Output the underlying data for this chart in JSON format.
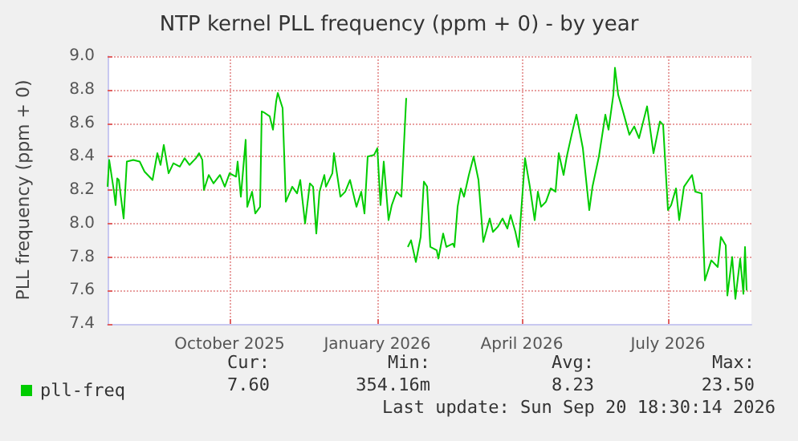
{
  "chart_data": {
    "type": "line",
    "title": "NTP kernel PLL frequency (ppm + 0) - by year",
    "ylabel": "PLL frequency (ppm + 0)",
    "xlim": [
      "2025-07-17",
      "2026-08-22"
    ],
    "xticks": [
      {
        "value": "2025-10-01",
        "label": "October 2025"
      },
      {
        "value": "2026-01-01",
        "label": "January 2026"
      },
      {
        "value": "2026-04-01",
        "label": "April 2026"
      },
      {
        "value": "2026-07-01",
        "label": "July 2026"
      }
    ],
    "ylim": [
      7.4,
      9.0
    ],
    "yticks": [
      {
        "value": 7.4,
        "label": "7.4"
      },
      {
        "value": 7.6,
        "label": "7.6"
      },
      {
        "value": 7.8,
        "label": "7.8"
      },
      {
        "value": 8.0,
        "label": "8.0"
      },
      {
        "value": 8.2,
        "label": "8.2"
      },
      {
        "value": 8.4,
        "label": "8.4"
      },
      {
        "value": 8.6,
        "label": "8.6"
      },
      {
        "value": 8.8,
        "label": "8.8"
      },
      {
        "value": 9.0,
        "label": "9.0"
      }
    ],
    "grid": true,
    "legend": "bottom left",
    "marker": "none",
    "line_style": "solid",
    "annotations": [
      "Cur:",
      "Min:",
      "Avg:",
      "Max:",
      "7.60",
      "354.16m",
      "8.23",
      "23.50",
      "Last update: Sun Sep 20 18:30:14 2026"
    ],
    "x": [
      "2025-07-17",
      "2025-07-18",
      "2025-07-21",
      "2025-07-22",
      "2025-07-23",
      "2025-07-24",
      "2025-07-27",
      "2025-07-29",
      "2025-08-02",
      "2025-08-06",
      "2025-08-09",
      "2025-08-14",
      "2025-08-17",
      "2025-08-19",
      "2025-08-21",
      "2025-08-24",
      "2025-08-27",
      "2025-08-31",
      "2025-09-03",
      "2025-09-06",
      "2025-09-10",
      "2025-09-12",
      "2025-09-14",
      "2025-09-15",
      "2025-09-18",
      "2025-09-21",
      "2025-09-25",
      "2025-09-28",
      "2025-10-01",
      "2025-10-05",
      "2025-10-06",
      "2025-10-08",
      "2025-10-11",
      "2025-10-12",
      "2025-10-15",
      "2025-10-17",
      "2025-10-20",
      "2025-10-21",
      "2025-10-23",
      "2025-10-26",
      "2025-10-28",
      "2025-10-30",
      "2025-10-31",
      "2025-11-03",
      "2025-11-05",
      "2025-11-09",
      "2025-11-12",
      "2025-11-14",
      "2025-11-17",
      "2025-11-20",
      "2025-11-22",
      "2025-11-24",
      "2025-11-26",
      "2025-11-29",
      "2025-11-30",
      "2025-12-04",
      "2025-12-05",
      "2025-12-09",
      "2025-12-12",
      "2025-12-15",
      "2025-12-19",
      "2025-12-22",
      "2025-12-24",
      "2025-12-26",
      "2025-12-30",
      "2026-01-01",
      "2026-01-03",
      "2026-01-05",
      "2026-01-08",
      "2026-01-10",
      "2026-01-13",
      "2026-01-16",
      "2026-01-19",
      "2026-01-19T12:00",
      "2026-01-20",
      "2026-01-22",
      "2026-01-25",
      "2026-01-28",
      "2026-01-30",
      "2026-02-01",
      "2026-02-03",
      "2026-02-07",
      "2026-02-08",
      "2026-02-11",
      "2026-02-13",
      "2026-02-17",
      "2026-02-18",
      "2026-02-20",
      "2026-02-22",
      "2026-02-24",
      "2026-02-27",
      "2026-03-02",
      "2026-03-05",
      "2026-03-08",
      "2026-03-12",
      "2026-03-14",
      "2026-03-17",
      "2026-03-20",
      "2026-03-23",
      "2026-03-25",
      "2026-03-28",
      "2026-03-30",
      "2026-04-03",
      "2026-04-06",
      "2026-04-09",
      "2026-04-11",
      "2026-04-13",
      "2026-04-16",
      "2026-04-19",
      "2026-04-22",
      "2026-04-24",
      "2026-04-27",
      "2026-04-29",
      "2026-05-02",
      "2026-05-05",
      "2026-05-09",
      "2026-05-13",
      "2026-05-15",
      "2026-05-19",
      "2026-05-23",
      "2026-05-25",
      "2026-05-28",
      "2026-05-29",
      "2026-05-31",
      "2026-06-03",
      "2026-06-07",
      "2026-06-10",
      "2026-06-13",
      "2026-06-18",
      "2026-06-22",
      "2026-06-26",
      "2026-06-28",
      "2026-07-01",
      "2026-07-03",
      "2026-07-06",
      "2026-07-08",
      "2026-07-11",
      "2026-07-16",
      "2026-07-18",
      "2026-07-22",
      "2026-07-24",
      "2026-07-28",
      "2026-08-01",
      "2026-08-03",
      "2026-08-06",
      "2026-08-07",
      "2026-08-10",
      "2026-08-12",
      "2026-08-15",
      "2026-08-17",
      "2026-08-18",
      "2026-08-19"
    ],
    "series": [
      {
        "name": "pll-freq",
        "color": "#00cc00",
        "values": [
          8.22,
          8.38,
          8.19,
          8.11,
          8.27,
          8.26,
          8.03,
          8.37,
          8.38,
          8.37,
          8.31,
          8.26,
          8.42,
          8.35,
          8.47,
          8.3,
          8.36,
          8.34,
          8.39,
          8.35,
          8.39,
          8.42,
          8.38,
          8.2,
          8.29,
          8.24,
          8.29,
          8.22,
          8.3,
          8.28,
          8.37,
          8.16,
          8.5,
          8.1,
          8.19,
          8.06,
          8.1,
          8.67,
          8.66,
          8.64,
          8.56,
          8.73,
          8.78,
          8.69,
          8.13,
          8.22,
          8.18,
          8.26,
          8.0,
          8.24,
          8.22,
          7.94,
          8.19,
          8.29,
          8.22,
          8.3,
          8.42,
          8.16,
          8.19,
          8.26,
          8.1,
          8.19,
          8.06,
          8.4,
          8.41,
          8.45,
          8.11,
          8.37,
          8.02,
          8.11,
          8.19,
          8.16,
          8.75,
          null,
          7.86,
          7.9,
          7.77,
          7.92,
          8.25,
          8.22,
          7.86,
          7.84,
          7.79,
          7.94,
          7.86,
          7.88,
          7.86,
          8.1,
          8.21,
          8.16,
          8.29,
          8.4,
          8.26,
          7.89,
          8.03,
          7.95,
          7.98,
          8.03,
          7.97,
          8.05,
          7.95,
          7.86,
          8.39,
          8.22,
          8.02,
          8.19,
          8.1,
          8.13,
          8.21,
          8.19,
          8.42,
          8.29,
          8.4,
          8.53,
          8.65,
          8.45,
          8.08,
          8.22,
          8.4,
          8.65,
          8.56,
          8.77,
          8.93,
          8.77,
          8.67,
          8.53,
          8.58,
          8.51,
          8.7,
          8.42,
          8.61,
          8.59,
          8.08,
          8.11,
          8.21,
          8.02,
          8.22,
          8.29,
          8.19,
          8.18,
          7.66,
          7.78,
          7.74,
          7.92,
          7.87,
          7.57,
          7.8,
          7.55,
          7.79,
          7.58,
          7.86,
          7.6
        ]
      }
    ]
  }
}
